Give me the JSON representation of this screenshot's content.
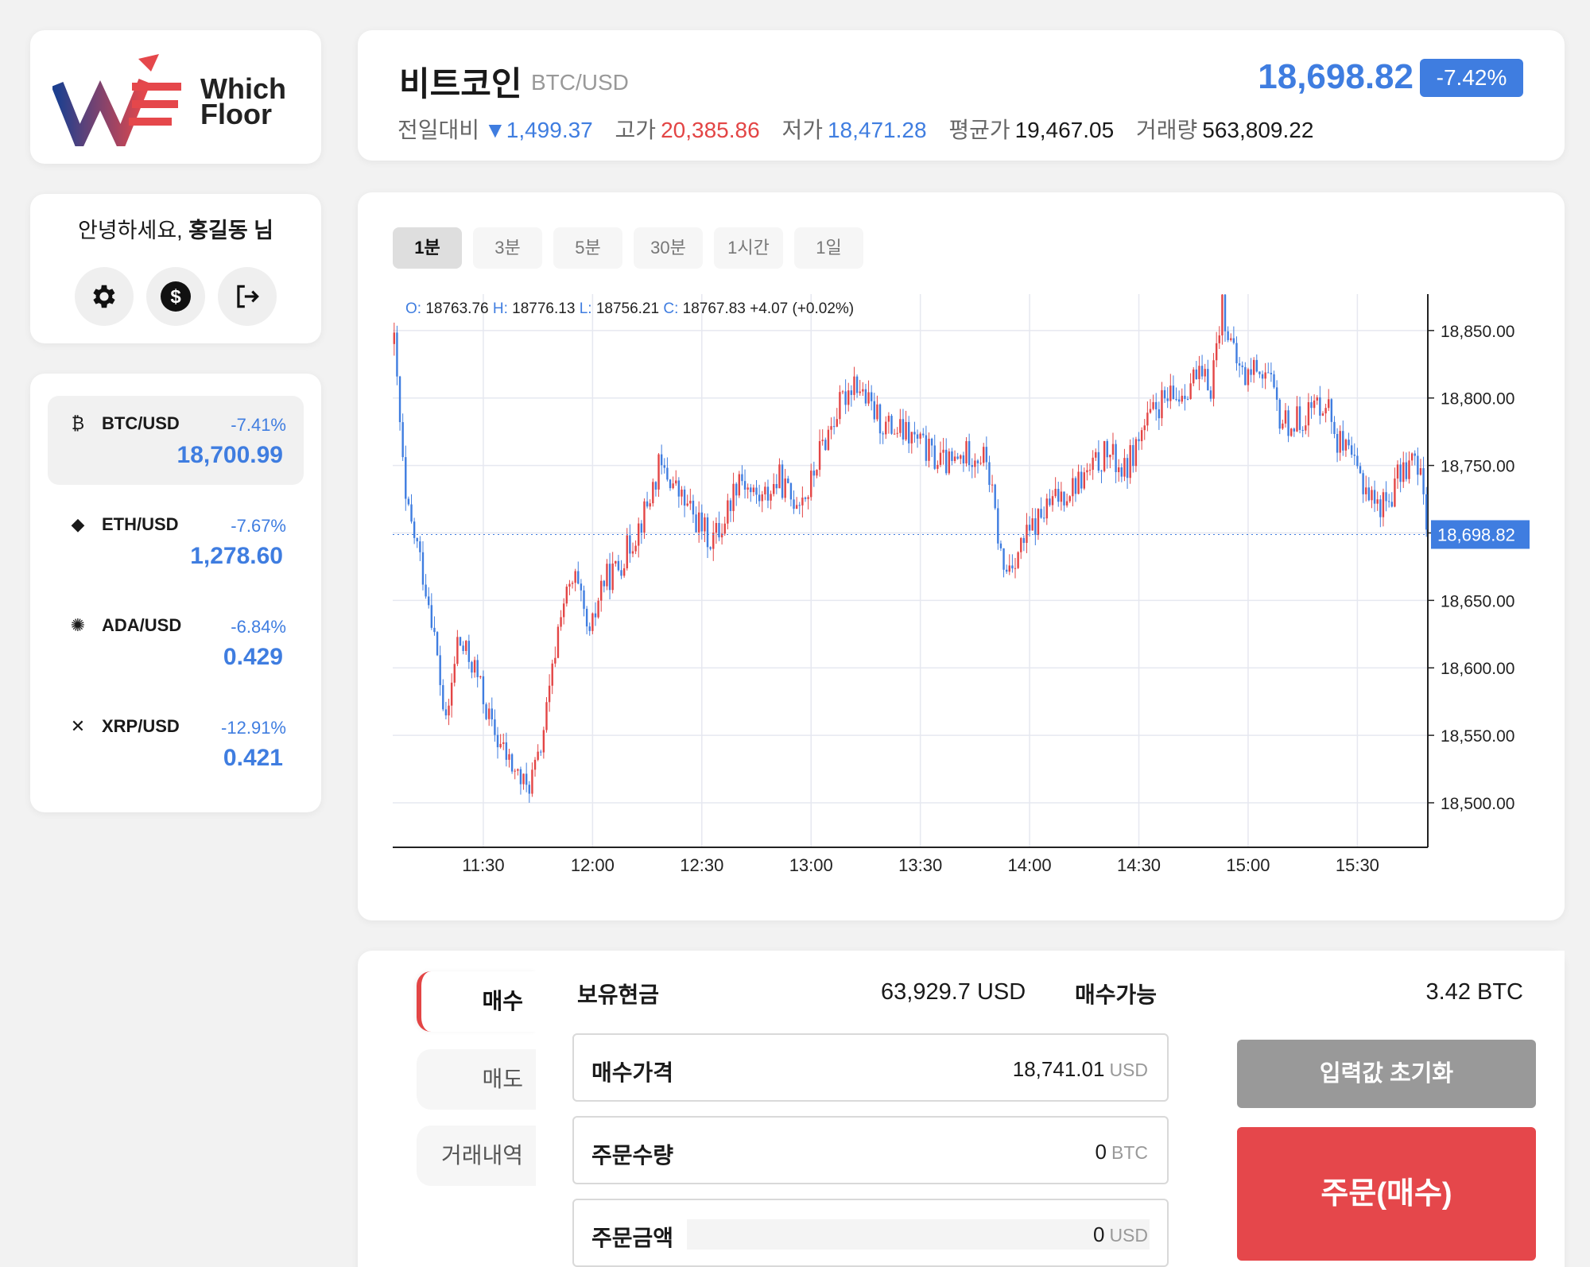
{
  "brand": {
    "name_line1": "Which",
    "name_line2": "Floor"
  },
  "user": {
    "greeting_prefix": "안녕하세요, ",
    "name": "홍길동 님"
  },
  "user_actions": [
    {
      "icon": "gear-icon"
    },
    {
      "icon": "dollar-icon"
    },
    {
      "icon": "logout-icon"
    }
  ],
  "coins": [
    {
      "symbol": "BTC/USD",
      "change": "-7.41%",
      "price": "18,700.99",
      "icon": "bitcoin-icon",
      "active": true
    },
    {
      "symbol": "ETH/USD",
      "change": "-7.67%",
      "price": "1,278.60",
      "icon": "ethereum-icon",
      "active": false
    },
    {
      "symbol": "ADA/USD",
      "change": "-6.84%",
      "price": "0.429",
      "icon": "cardano-icon",
      "active": false
    },
    {
      "symbol": "XRP/USD",
      "change": "-12.91%",
      "price": "0.421",
      "icon": "xrp-icon",
      "active": false
    }
  ],
  "header": {
    "title": "비트코인",
    "pair": "BTC/USD",
    "price": "18,698.82",
    "change_pct": "-7.42%",
    "stats": {
      "prev_label": "전일대비",
      "prev_value": "▼1,499.37",
      "high_label": "고가",
      "high_value": "20,385.86",
      "low_label": "저가",
      "low_value": "18,471.28",
      "avg_label": "평균가",
      "avg_value": "19,467.05",
      "vol_label": "거래량",
      "vol_value": "563,809.22"
    }
  },
  "timeframes": [
    "1분",
    "3분",
    "5분",
    "30분",
    "1시간",
    "1일"
  ],
  "active_timeframe": 0,
  "chart_data": {
    "type": "candlestick",
    "ohlc_legend": {
      "o": "18763.76",
      "h": "18776.13",
      "l": "18756.21",
      "c": "18767.83",
      "change": "+4.07 (+0.02%)"
    },
    "x_ticks": [
      "11:30",
      "12:00",
      "12:30",
      "13:00",
      "13:30",
      "14:00",
      "14:30",
      "15:00",
      "15:30"
    ],
    "y_ticks": [
      "18,850.00",
      "18,800.00",
      "18,750.00",
      "18,700.00",
      "18,650.00",
      "18,600.00",
      "18,550.00",
      "18,500.00"
    ],
    "ylim": [
      18467,
      18877
    ],
    "last_price": "18,698.82",
    "up_color": "#e34545",
    "down_color": "#3f7de0",
    "path": [
      [
        0,
        18840
      ],
      [
        4,
        18720
      ],
      [
        8,
        18690
      ],
      [
        13,
        18640
      ],
      [
        18,
        18555
      ],
      [
        22,
        18620
      ],
      [
        28,
        18600
      ],
      [
        34,
        18555
      ],
      [
        40,
        18530
      ],
      [
        46,
        18510
      ],
      [
        50,
        18530
      ],
      [
        54,
        18580
      ],
      [
        58,
        18645
      ],
      [
        63,
        18665
      ],
      [
        68,
        18620
      ],
      [
        72,
        18662
      ],
      [
        78,
        18675
      ],
      [
        84,
        18700
      ],
      [
        88,
        18720
      ],
      [
        92,
        18748
      ],
      [
        96,
        18740
      ],
      [
        100,
        18725
      ],
      [
        105,
        18710
      ],
      [
        110,
        18695
      ],
      [
        114,
        18705
      ],
      [
        120,
        18745
      ],
      [
        124,
        18730
      ],
      [
        128,
        18725
      ],
      [
        134,
        18740
      ],
      [
        138,
        18725
      ],
      [
        144,
        18730
      ],
      [
        148,
        18760
      ],
      [
        154,
        18790
      ],
      [
        160,
        18815
      ],
      [
        165,
        18795
      ],
      [
        170,
        18780
      ],
      [
        176,
        18775
      ],
      [
        182,
        18768
      ],
      [
        188,
        18755
      ],
      [
        194,
        18750
      ],
      [
        200,
        18760
      ],
      [
        206,
        18755
      ],
      [
        212,
        18670
      ],
      [
        218,
        18690
      ],
      [
        224,
        18710
      ],
      [
        230,
        18725
      ],
      [
        236,
        18735
      ],
      [
        242,
        18745
      ],
      [
        248,
        18760
      ],
      [
        254,
        18745
      ],
      [
        260,
        18775
      ],
      [
        266,
        18795
      ],
      [
        272,
        18800
      ],
      [
        278,
        18815
      ],
      [
        284,
        18810
      ],
      [
        288,
        18870
      ],
      [
        292,
        18830
      ],
      [
        296,
        18815
      ],
      [
        300,
        18825
      ],
      [
        304,
        18815
      ],
      [
        308,
        18785
      ],
      [
        312,
        18780
      ],
      [
        318,
        18790
      ],
      [
        324,
        18800
      ],
      [
        328,
        18770
      ],
      [
        332,
        18755
      ],
      [
        338,
        18735
      ],
      [
        342,
        18720
      ],
      [
        346,
        18725
      ],
      [
        350,
        18745
      ],
      [
        354,
        18755
      ],
      [
        357,
        18740
      ],
      [
        360,
        18700
      ]
    ]
  },
  "order": {
    "side_tabs": [
      "매수",
      "매도",
      "거래내역"
    ],
    "cash_label": "보유현금",
    "cash_value": "63,929.7 USD",
    "buyable_label": "매수가능",
    "buyable_value": "3.42 BTC",
    "price_label": "매수가격",
    "price_value": "18,741.01",
    "price_unit": "USD",
    "qty_label": "주문수량",
    "qty_value": "0",
    "qty_unit": "BTC",
    "amount_label": "주문금액",
    "amount_value": "0",
    "amount_unit": "USD",
    "reset_label": "입력값 초기화",
    "submit_label": "주문(매수)"
  }
}
